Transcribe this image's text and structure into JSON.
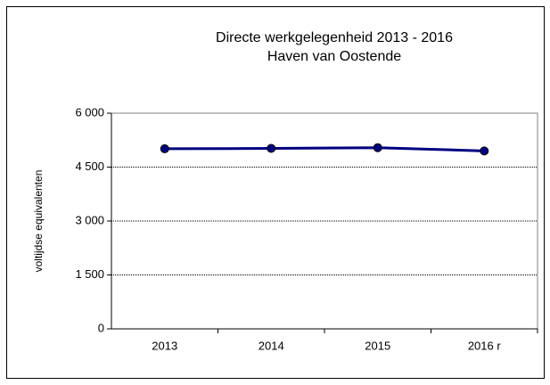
{
  "chart_data": {
    "type": "line",
    "title": "Directe werkgelegenheid 2013 - 2016",
    "subtitle": "Haven van Oostende",
    "y_label": "voltijdse equivalenten",
    "categories": [
      "2013",
      "2014",
      "2015",
      "2016 r"
    ],
    "series": [
      {
        "name": "Directe werkgelegenheid",
        "color": "#000080",
        "values": [
          5010,
          5020,
          5040,
          4950
        ]
      }
    ],
    "ylim": [
      0,
      6000
    ],
    "yticks": [
      0,
      {
        "value": 1500,
        "label": "1 500"
      },
      {
        "value": 3000,
        "label": "3 000"
      },
      {
        "value": 4500,
        "label": "4 500"
      },
      {
        "value": 6000,
        "label": "6 000"
      }
    ],
    "grid": true
  }
}
